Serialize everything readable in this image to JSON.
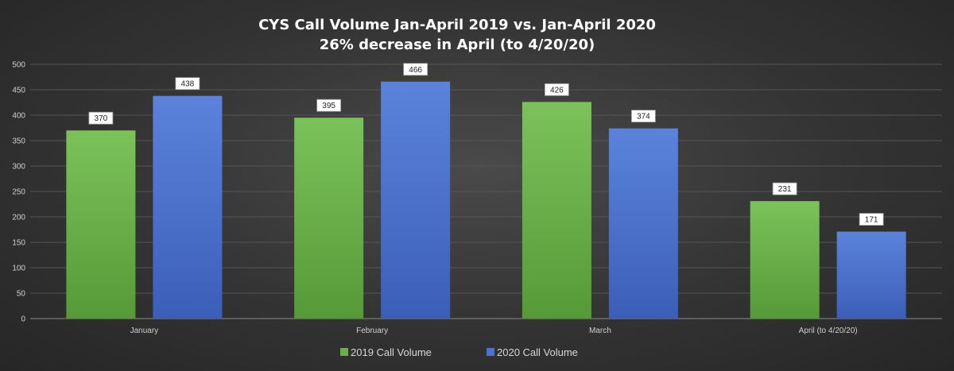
{
  "chart_data": {
    "type": "bar",
    "title": "CYS Call Volume Jan-April 2019 vs. Jan-April 2020",
    "subtitle": "26% decrease in April (to 4/20/20)",
    "categories": [
      "January",
      "February",
      "March",
      "April (to 4/20/20)"
    ],
    "series": [
      {
        "name": "2019 Call Volume",
        "values": [
          370,
          395,
          426,
          231
        ],
        "color": "#6ab04a"
      },
      {
        "name": "2020 Call Volume",
        "values": [
          438,
          466,
          374,
          171
        ],
        "color": "#4a72cf"
      }
    ],
    "ylim": [
      0,
      500
    ],
    "yticks": [
      0,
      50,
      100,
      150,
      200,
      250,
      300,
      350,
      400,
      450,
      500
    ],
    "grid": true,
    "legend_position": "bottom-center",
    "data_labels": true
  }
}
